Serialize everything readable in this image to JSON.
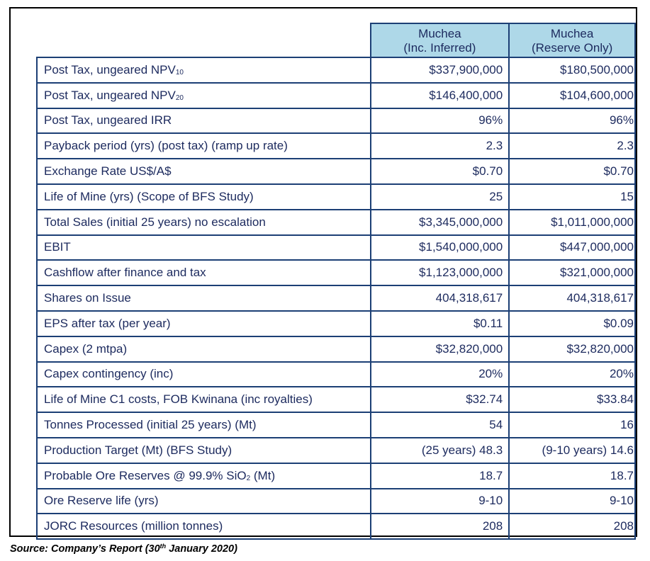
{
  "table": {
    "headers": {
      "inc_inferred": [
        "Muchea",
        "(Inc. Inferred)"
      ],
      "reserve_only": [
        "Muchea",
        "(Reserve Only)"
      ]
    },
    "rows": [
      {
        "label": "Post Tax, ungeared NPV",
        "sub": "10",
        "inc_inferred": "$337,900,000",
        "reserve_only": "$180,500,000"
      },
      {
        "label": "Post Tax, ungeared NPV",
        "sub": "20",
        "inc_inferred": "$146,400,000",
        "reserve_only": "$104,600,000"
      },
      {
        "label": "Post Tax, ungeared IRR",
        "sub": "",
        "inc_inferred": "96%",
        "reserve_only": "96%"
      },
      {
        "label": "Payback period (yrs) (post tax) (ramp up rate)",
        "sub": "",
        "inc_inferred": "2.3",
        "reserve_only": "2.3"
      },
      {
        "label": "Exchange Rate US$/A$",
        "sub": "",
        "inc_inferred": "$0.70",
        "reserve_only": "$0.70"
      },
      {
        "label": "Life of Mine (yrs) (Scope of BFS Study)",
        "sub": "",
        "inc_inferred": "25",
        "reserve_only": "15"
      },
      {
        "label": "Total Sales (initial 25 years) no escalation",
        "sub": "",
        "inc_inferred": "$3,345,000,000",
        "reserve_only": "$1,011,000,000"
      },
      {
        "label": "EBIT",
        "sub": "",
        "inc_inferred": "$1,540,000,000",
        "reserve_only": "$447,000,000"
      },
      {
        "label": "Cashflow after finance and tax",
        "sub": "",
        "inc_inferred": "$1,123,000,000",
        "reserve_only": "$321,000,000"
      },
      {
        "label": "Shares on Issue",
        "sub": "",
        "inc_inferred": "404,318,617",
        "reserve_only": "404,318,617"
      },
      {
        "label": "EPS after tax (per year)",
        "sub": "",
        "inc_inferred": "$0.11",
        "reserve_only": "$0.09"
      },
      {
        "label": "Capex (2 mtpa)",
        "sub": "",
        "inc_inferred": "$32,820,000",
        "reserve_only": "$32,820,000"
      },
      {
        "label": "Capex contingency (inc)",
        "sub": "",
        "inc_inferred": "20%",
        "reserve_only": "20%"
      },
      {
        "label": "Life of Mine C1 costs, FOB Kwinana (inc royalties)",
        "sub": "",
        "inc_inferred": "$32.74",
        "reserve_only": "$33.84"
      },
      {
        "label": "Tonnes Processed (initial 25 years) (Mt)",
        "sub": "",
        "inc_inferred": "54",
        "reserve_only": "16"
      },
      {
        "label": "Production Target (Mt) (BFS Study)",
        "sub": "",
        "inc_inferred": "(25 years) 48.3",
        "reserve_only": "(9-10 years) 14.6"
      },
      {
        "label": "Probable Ore Reserves @ 99.9% SiO",
        "sub": "2",
        "label_suffix": " (Mt)",
        "inc_inferred": "18.7",
        "reserve_only": "18.7"
      },
      {
        "label": "Ore Reserve life (yrs)",
        "sub": "",
        "inc_inferred": "9-10",
        "reserve_only": "9-10"
      },
      {
        "label": "JORC Resources (million tonnes)",
        "sub": "",
        "inc_inferred": "208",
        "reserve_only": "208"
      }
    ]
  },
  "source": {
    "prefix": "Source: Company’s Report (30",
    "superscript": "th",
    "suffix": " January 2020)"
  },
  "colors": {
    "header_fill": "#aed8e8",
    "border": "#1c3f75",
    "text": "#1c2a5e"
  }
}
